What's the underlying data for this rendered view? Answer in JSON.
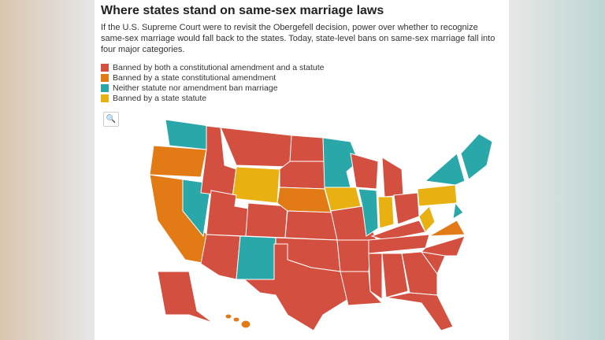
{
  "header": {
    "title": "Where states stand on same-sex marriage laws",
    "subtitle": "If the U.S. Supreme Court were to revisit the Obergefell decision, power over whether to recognize same-sex marriage would fall back to the states. Today, state-level bans on same-sex marriage fall into four major categories."
  },
  "legend": [
    {
      "label": "Banned by both a constitutional amendment and a statute",
      "color": "#d34f3f"
    },
    {
      "label": "Banned by a state constitutional amendment",
      "color": "#e27b16"
    },
    {
      "label": "Neither statute nor amendment ban marriage",
      "color": "#2aa7a9"
    },
    {
      "label": "Banned by a state statute",
      "color": "#e9b012"
    }
  ]
}
